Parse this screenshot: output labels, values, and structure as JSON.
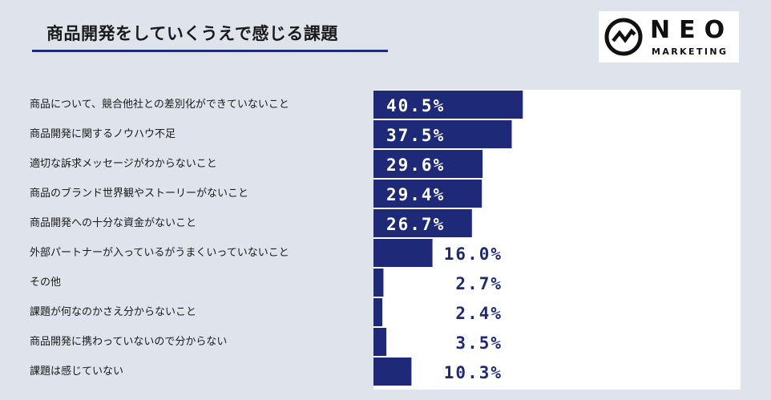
{
  "header": {
    "title": "商品開発をしていくうえで感じる課題"
  },
  "logo": {
    "main": "NEO",
    "sub": "MARKETING"
  },
  "colors": {
    "bar": "#1e2a78",
    "background": "#dfe3ec",
    "plot_background": "#ffffff",
    "label_inside": "#ffffff",
    "label_outside": "#1e2a78"
  },
  "chart_data": {
    "type": "bar",
    "orientation": "horizontal",
    "title": "商品開発をしていくうえで感じる課題",
    "categories": [
      "商品について、競合他社との差別化ができていないこと",
      "商品開発に関するノウハウ不足",
      "適切な訴求メッセージがわからないこと",
      "商品のブランド世界観やストーリーがないこと",
      "商品開発への十分な資金がないこと",
      "外部パートナーが入っているがうまくいっていないこと",
      "その他",
      "課題が何なのかさえ分からないこと",
      "商品開発に携わっていないので分からない",
      "課題は感じていない"
    ],
    "values": [
      40.5,
      37.5,
      29.6,
      29.4,
      26.7,
      16.0,
      2.7,
      2.4,
      3.5,
      10.3
    ],
    "value_labels": [
      "40.5%",
      "37.5%",
      "29.6%",
      "29.4%",
      "26.7%",
      "16.0%",
      "2.7%",
      "2.4%",
      "3.5%",
      "10.3%"
    ],
    "unit": "%",
    "xlim": [
      0,
      100
    ]
  }
}
